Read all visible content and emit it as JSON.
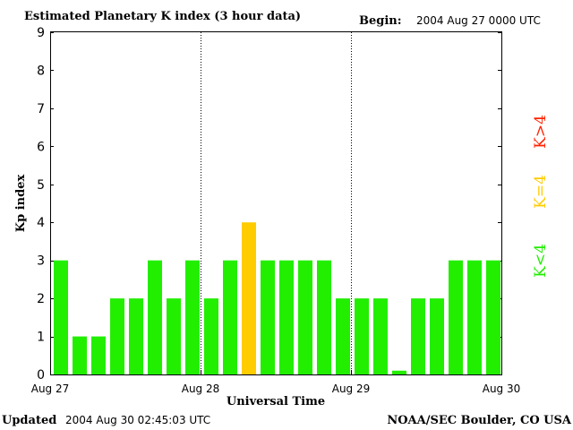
{
  "header": {
    "title": "Estimated Planetary K index (3 hour data)",
    "begin_label": "Begin:",
    "begin_value": "2004 Aug 27 0000 UTC"
  },
  "footer": {
    "updated_label": "Updated",
    "updated_value": "2004 Aug 30 02:45:03 UTC",
    "source": "NOAA/SEC Boulder, CO USA"
  },
  "colors": {
    "below_4": "#22ee00",
    "equal_4": "#ffcc00",
    "above_4": "#ff2200"
  },
  "chart_data": {
    "type": "bar",
    "title": "Estimated Planetary K index (3 hour data)",
    "xlabel": "Universal Time",
    "ylabel": "Kp index",
    "ylim": [
      0,
      9
    ],
    "yticks": [
      0,
      1,
      2,
      3,
      4,
      5,
      6,
      7,
      8,
      9
    ],
    "x_tick_labels": [
      "Aug 27",
      "Aug 28",
      "Aug 29",
      "Aug 30"
    ],
    "interval_hours": 3,
    "values": [
      3,
      1,
      1,
      2,
      2,
      3,
      2,
      3,
      2,
      3,
      4,
      3,
      3,
      3,
      3,
      2,
      2,
      2,
      0.1,
      2,
      2,
      3,
      3,
      3
    ],
    "legend": [
      "K<4",
      "K=4",
      "K>4"
    ],
    "grid": "dotted day separators"
  }
}
